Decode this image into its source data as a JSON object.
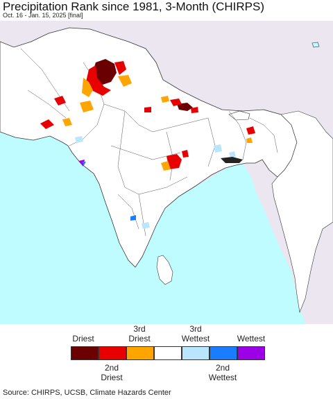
{
  "title": "Precipitation Rank since 1981, 3-Month (CHIRPS)",
  "subtitle": "Oct. 16 - Jan. 15, 2025 [final]",
  "legend": {
    "top_labels": [
      "Driest",
      "3rd\nDriest",
      "3rd\nWettest",
      "Wettest"
    ],
    "bottom_labels": [
      "2nd\nDriest",
      "2nd\nWettest"
    ],
    "colors": [
      "#6b0000",
      "#e80000",
      "#ffa500",
      "#ffffff",
      "#b9e6fb",
      "#1a7dff",
      "#9b00e6"
    ]
  },
  "colors": {
    "ocean": "#bffcff",
    "land": "#ffffff",
    "outside": "#ebe6ef",
    "border": "#333333"
  },
  "source": "Source: CHIRPS, UCSB, Climate Hazards Center"
}
